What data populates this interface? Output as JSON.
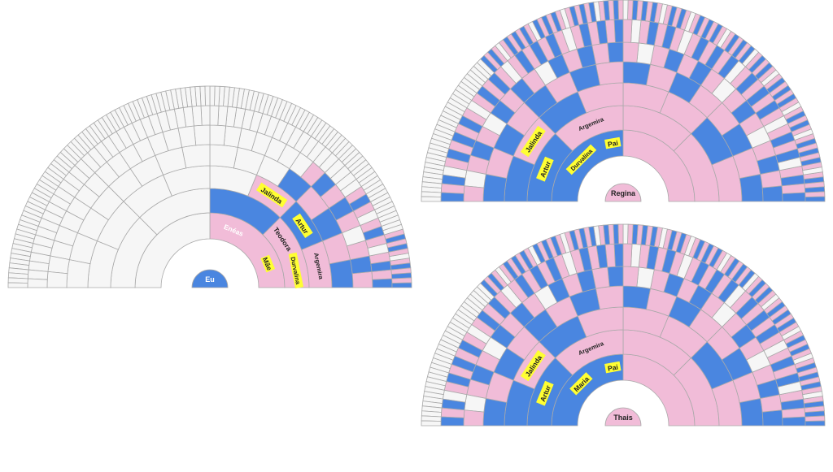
{
  "colors": {
    "blue": "#4a86e0",
    "pink": "#f1bcd8",
    "empty": "#f6f6f6",
    "stroke": "#a9a9a9",
    "highlight": "#ffff33",
    "text_dark": "#222222",
    "text_light": "#ffffff"
  },
  "fans": [
    {
      "id": "eu",
      "center_label": "Eu",
      "center_color": "blue",
      "label_color": "light",
      "rings": [
        {
          "cells": [
            "pink",
            "blue"
          ]
        },
        {
          "cells": [
            "pink",
            "blue",
            "empty",
            "empty"
          ]
        },
        {
          "cells": [
            "pink",
            "blue",
            "pink",
            "empty",
            "empty",
            "empty",
            "empty",
            "empty"
          ]
        },
        {
          "cells": [
            "blue",
            "pink",
            "blue",
            "pink",
            "blue",
            "empty",
            "empty",
            "empty"
          ],
          "rest": "empty"
        },
        {
          "cells": [
            "pink",
            "blue",
            "pink",
            "empty",
            "pink",
            "blue",
            "pink",
            "blue",
            "pink",
            "empty"
          ],
          "rest": "empty"
        },
        {
          "cells": [
            "blue",
            "pink",
            "blue",
            "pink",
            "empty",
            "pink",
            "blue",
            "pink",
            "empty",
            "pink",
            "blue",
            "pink"
          ],
          "rest": "empty"
        },
        {
          "cells": [
            "blue",
            "pink",
            "blue",
            "pink",
            "blue",
            "pink",
            "empty",
            "pink",
            "blue",
            "pink",
            "blue",
            "pink"
          ],
          "rest": "empty"
        }
      ],
      "labels": [
        {
          "text": "Mãe",
          "ring": 0,
          "cell": 0,
          "highlight": true
        },
        {
          "text": "Enéas",
          "ring": 0,
          "cell": 1,
          "highlight": false
        },
        {
          "text": "Durvalina",
          "ring": 1,
          "cell": 0,
          "highlight": true
        },
        {
          "text": "Teodora",
          "ring": 1,
          "cell": 1,
          "highlight": false
        },
        {
          "text": "Argemira",
          "ring": 2,
          "cell": 0,
          "highlight": false
        },
        {
          "text": "Artur",
          "ring": 2,
          "cell": 1,
          "highlight": true
        },
        {
          "text": "Jalinda",
          "ring": 2,
          "cell": 2,
          "highlight": true
        }
      ]
    },
    {
      "id": "regina",
      "center_label": "Regina",
      "center_color": "pink",
      "label_color": "dark",
      "rings": [
        {
          "cells": [
            "pink",
            "blue"
          ]
        },
        {
          "cells": [
            "pink",
            "pink",
            "pink",
            "blue"
          ]
        },
        {
          "cells": [
            "pink",
            "blue",
            "pink",
            "pink",
            "pink",
            "blue",
            "pink",
            "blue"
          ]
        },
        {
          "cells": [
            "blue",
            "pink",
            "blue",
            "pink",
            "pink",
            "blue",
            "pink",
            "blue",
            "pink",
            "blue",
            "pink",
            "blue",
            "pink",
            "blue",
            "pink",
            "blue"
          ]
        },
        {
          "cells": [
            "blue",
            "pink",
            "blue",
            "pink",
            "empty",
            "pink",
            "blue",
            "pink",
            "empty",
            "pink",
            "blue",
            "pink",
            "blue",
            "pink",
            "empty",
            "pink",
            "blue",
            "pink",
            "blue",
            "pink",
            "blue",
            "empty",
            "pink",
            "blue",
            "pink",
            "blue",
            "empty",
            "pink",
            "blue",
            "pink",
            "empty",
            "pink"
          ]
        },
        {
          "cells": [
            "blue",
            "pink",
            "blue",
            "pink",
            "empty",
            "blue",
            "pink",
            "blue",
            "pink",
            "empty",
            "pink",
            "blue",
            "pink",
            "blue",
            "pink",
            "blue",
            "pink",
            "empty",
            "blue",
            "pink",
            "blue",
            "pink",
            "blue",
            "pink",
            "empty",
            "pink",
            "blue",
            "pink",
            "blue",
            "pink",
            "empty",
            "pink",
            "blue",
            "pink",
            "blue",
            "pink",
            "blue",
            "pink",
            "empty",
            "pink",
            "blue",
            "pink",
            "blue",
            "pink",
            "blue",
            "pink",
            "empty",
            "pink",
            "blue",
            "pink",
            "blue",
            "pink",
            "empty",
            "pink",
            "blue",
            "pink",
            "blue",
            "pink",
            "blue",
            "pink",
            "empty",
            "blue",
            "pink",
            "blue"
          ]
        },
        {
          "cells": [
            "blue",
            "pink",
            "blue",
            "pink",
            "blue",
            "pink",
            "empty",
            "pink",
            "blue",
            "pink",
            "blue",
            "pink",
            "blue",
            "pink",
            "empty",
            "pink",
            "blue",
            "pink",
            "blue",
            "pink",
            "empty",
            "pink",
            "blue",
            "pink",
            "blue",
            "pink",
            "blue",
            "pink",
            "empty",
            "pink",
            "blue",
            "pink",
            "blue",
            "pink",
            "empty",
            "blue",
            "pink",
            "blue",
            "pink",
            "blue",
            "pink",
            "empty",
            "pink",
            "blue",
            "pink",
            "blue",
            "pink",
            "blue",
            "pink",
            "empty",
            "pink",
            "blue",
            "pink",
            "blue",
            "pink",
            "empty",
            "pink",
            "blue",
            "pink",
            "blue",
            "pink",
            "blue",
            "pink",
            "empty",
            "pink",
            "blue",
            "pink",
            "blue",
            "pink",
            "empty",
            "blue",
            "pink",
            "blue",
            "pink",
            "blue",
            "pink",
            "empty",
            "pink",
            "blue",
            "pink",
            "blue",
            "pink",
            "blue",
            "empty",
            "pink",
            "blue",
            "pink",
            "blue",
            "pink",
            "blue",
            "pink",
            "empty",
            "pink",
            "blue",
            "pink",
            "blue"
          ],
          "rest": "empty"
        }
      ],
      "labels": [
        {
          "text": "Pai",
          "ring": -1,
          "cell": 0,
          "highlight": true
        },
        {
          "text": "Durvalina",
          "ring": 0,
          "cell": 1,
          "highlight": true
        },
        {
          "text": "Argemira",
          "ring": 1,
          "cell": 2,
          "highlight": false
        },
        {
          "text": "Artur",
          "ring": 1,
          "cell": 3,
          "highlight": true
        },
        {
          "text": "Jalinda",
          "ring": 2,
          "cell": 6,
          "highlight": true
        }
      ]
    },
    {
      "id": "thais",
      "center_label": "Thais",
      "center_color": "pink",
      "label_color": "dark",
      "rings": [
        {
          "cells": [
            "pink",
            "blue"
          ]
        },
        {
          "cells": [
            "pink",
            "pink",
            "pink",
            "blue"
          ]
        },
        {
          "cells": [
            "pink",
            "blue",
            "pink",
            "pink",
            "pink",
            "blue",
            "pink",
            "blue"
          ]
        },
        {
          "cells": [
            "blue",
            "pink",
            "blue",
            "pink",
            "pink",
            "blue",
            "pink",
            "blue",
            "pink",
            "blue",
            "pink",
            "blue",
            "pink",
            "blue",
            "pink",
            "blue"
          ]
        },
        {
          "cells": [
            "blue",
            "pink",
            "blue",
            "pink",
            "empty",
            "pink",
            "blue",
            "pink",
            "empty",
            "pink",
            "blue",
            "pink",
            "blue",
            "pink",
            "empty",
            "pink",
            "blue",
            "pink",
            "blue",
            "pink",
            "blue",
            "empty",
            "pink",
            "blue",
            "pink",
            "blue",
            "empty",
            "pink",
            "blue",
            "pink",
            "empty",
            "pink"
          ]
        },
        {
          "cells": [
            "blue",
            "pink",
            "blue",
            "pink",
            "empty",
            "blue",
            "pink",
            "blue",
            "pink",
            "empty",
            "pink",
            "blue",
            "pink",
            "blue",
            "pink",
            "blue",
            "pink",
            "empty",
            "blue",
            "pink",
            "blue",
            "pink",
            "blue",
            "pink",
            "empty",
            "pink",
            "blue",
            "pink",
            "blue",
            "pink",
            "empty",
            "pink",
            "blue",
            "pink",
            "blue",
            "pink",
            "blue",
            "pink",
            "empty",
            "pink",
            "blue",
            "pink",
            "blue",
            "pink",
            "blue",
            "pink",
            "empty",
            "pink",
            "blue",
            "pink",
            "blue",
            "pink",
            "empty",
            "pink",
            "blue",
            "pink",
            "blue",
            "pink",
            "blue",
            "pink",
            "empty",
            "blue",
            "pink",
            "blue"
          ]
        },
        {
          "cells": [
            "blue",
            "pink",
            "blue",
            "pink",
            "blue",
            "pink",
            "empty",
            "pink",
            "blue",
            "pink",
            "blue",
            "pink",
            "blue",
            "pink",
            "empty",
            "pink",
            "blue",
            "pink",
            "blue",
            "pink",
            "empty",
            "pink",
            "blue",
            "pink",
            "blue",
            "pink",
            "blue",
            "pink",
            "empty",
            "pink",
            "blue",
            "pink",
            "blue",
            "pink",
            "empty",
            "blue",
            "pink",
            "blue",
            "pink",
            "blue",
            "pink",
            "empty",
            "pink",
            "blue",
            "pink",
            "blue",
            "pink",
            "blue",
            "pink",
            "empty",
            "pink",
            "blue",
            "pink",
            "blue",
            "pink",
            "empty",
            "pink",
            "blue",
            "pink",
            "blue",
            "pink",
            "blue",
            "pink",
            "empty",
            "pink",
            "blue",
            "pink",
            "blue",
            "pink",
            "empty",
            "blue",
            "pink",
            "blue",
            "pink",
            "blue",
            "pink",
            "empty",
            "pink",
            "blue",
            "pink",
            "blue",
            "pink",
            "blue",
            "empty",
            "pink",
            "blue",
            "pink",
            "blue",
            "pink",
            "blue",
            "pink",
            "empty",
            "pink",
            "blue",
            "pink",
            "blue"
          ],
          "rest": "empty"
        }
      ],
      "labels": [
        {
          "text": "Pai",
          "ring": -1,
          "cell": 0,
          "highlight": true
        },
        {
          "text": "Maria",
          "ring": 0,
          "cell": 1,
          "highlight": true
        },
        {
          "text": "Argemira",
          "ring": 1,
          "cell": 2,
          "highlight": false
        },
        {
          "text": "Artur",
          "ring": 1,
          "cell": 3,
          "highlight": true
        },
        {
          "text": "Jalinda",
          "ring": 2,
          "cell": 6,
          "highlight": true
        }
      ]
    }
  ]
}
